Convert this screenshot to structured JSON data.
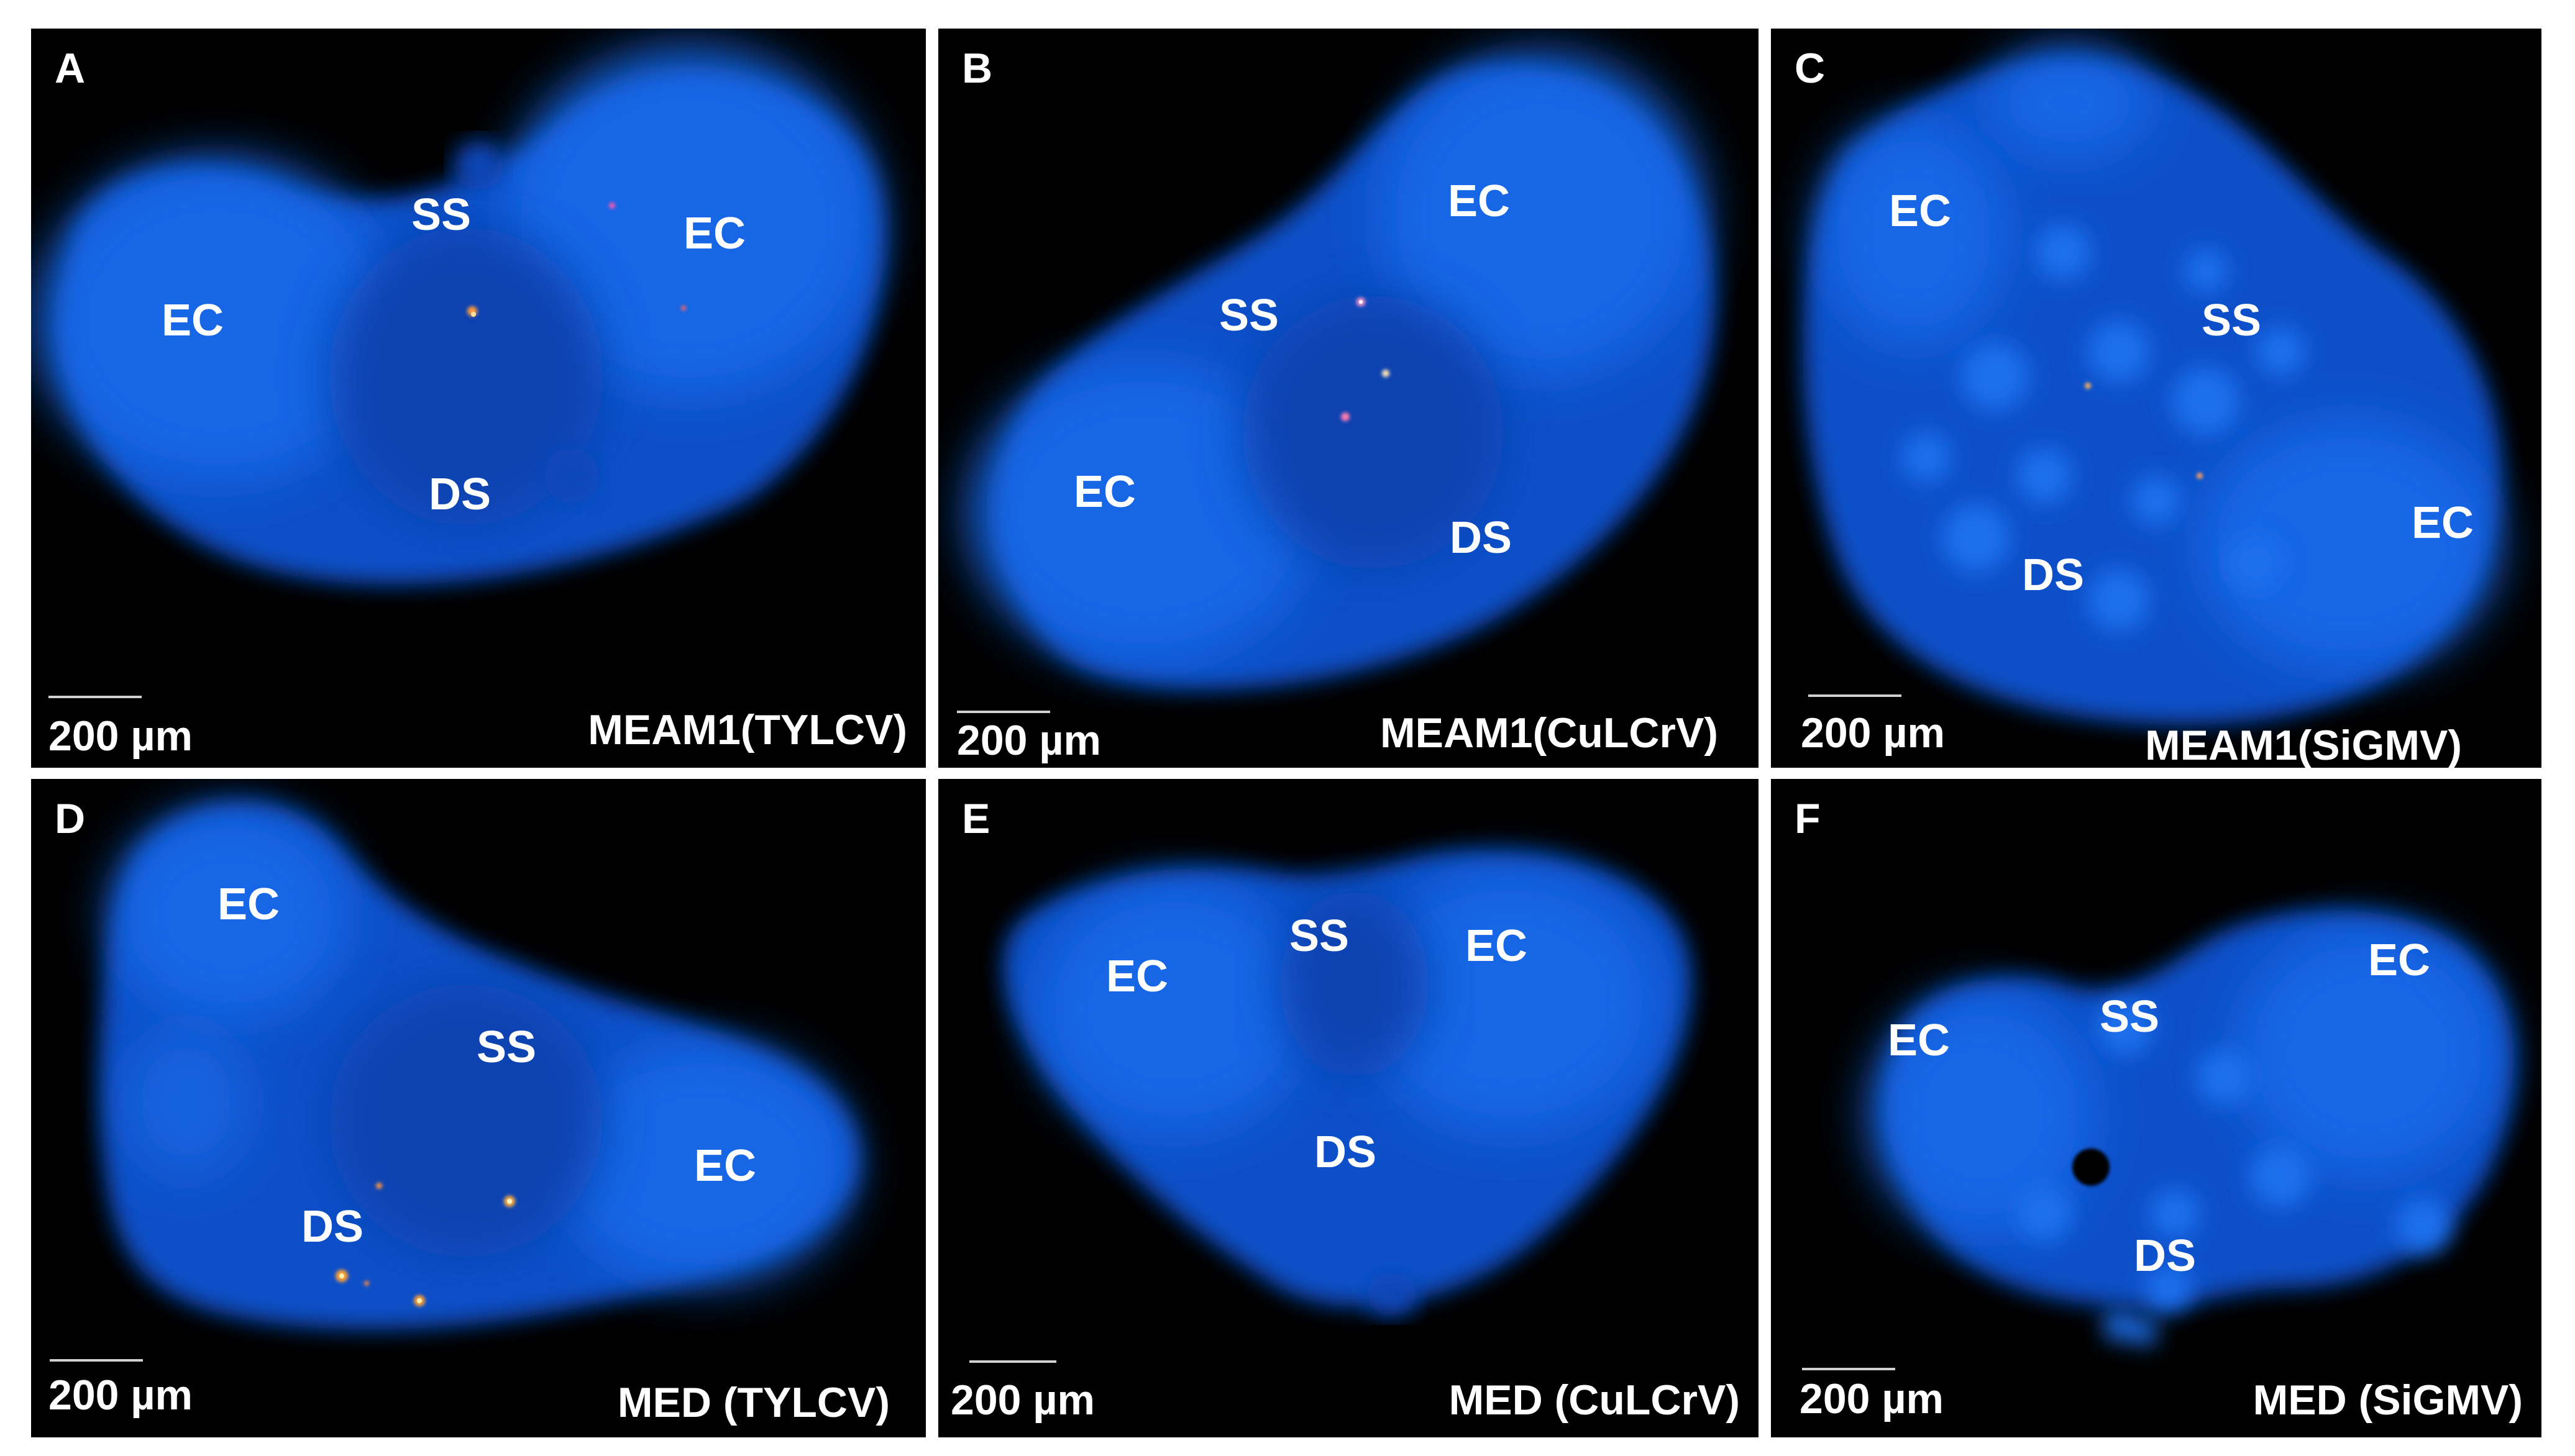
{
  "scale_bar": "200 µm",
  "panels": [
    {
      "letter": "A",
      "condition": "MEAM1(TYLCV)",
      "labels": [
        "SS",
        "EC",
        "EC",
        "DS"
      ]
    },
    {
      "letter": "B",
      "condition": "MEAM1(CuLCrV)",
      "labels": [
        "EC",
        "SS",
        "EC",
        "DS"
      ]
    },
    {
      "letter": "C",
      "condition": "MEAM1(SiGMV)",
      "labels": [
        "EC",
        "SS",
        "EC",
        "DS"
      ]
    },
    {
      "letter": "D",
      "condition": "MED (TYLCV)",
      "labels": [
        "EC",
        "SS",
        "EC",
        "DS"
      ]
    },
    {
      "letter": "E",
      "condition": "MED (CuLCrV)",
      "labels": [
        "SS",
        "EC",
        "EC",
        "DS"
      ]
    },
    {
      "letter": "F",
      "condition": "MED (SiGMV)",
      "labels": [
        "EC",
        "SS",
        "EC",
        "DS"
      ]
    }
  ]
}
